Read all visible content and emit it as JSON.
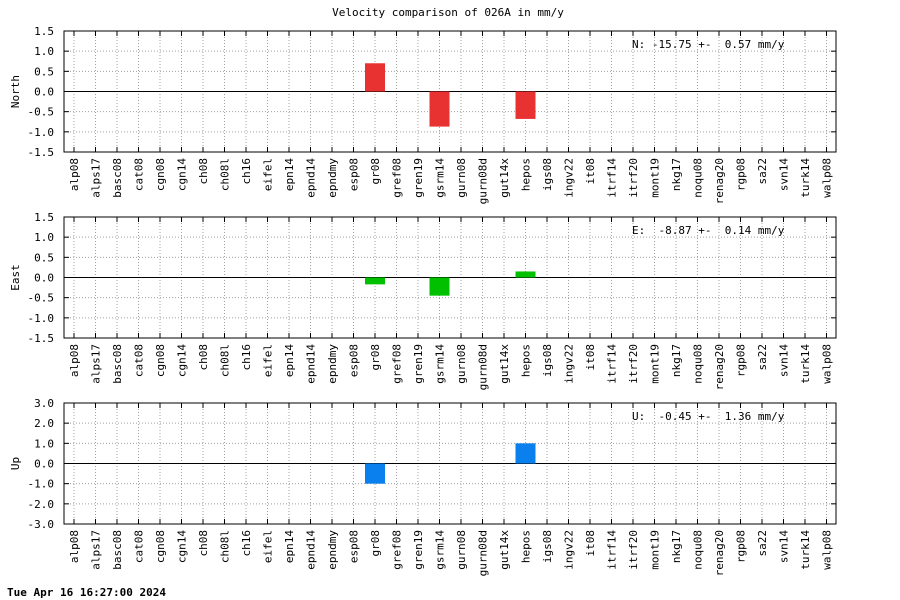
{
  "chart_data": {
    "type": "bar",
    "title": "Velocity comparison of 026A in mm/y",
    "categories": [
      "alp08",
      "alps17",
      "basc08",
      "cat08",
      "cgn08",
      "cgn14",
      "ch08",
      "ch08l",
      "ch16",
      "eifel",
      "epn14",
      "epnd14",
      "epndmy",
      "esp08",
      "gr08",
      "gref08",
      "gren19",
      "gsrm14",
      "gurn08",
      "gurn08d",
      "gut14x",
      "hepos",
      "igs08",
      "ingv22",
      "it08",
      "itrf14",
      "itrf20",
      "mont19",
      "nkg17",
      "noqu08",
      "renag20",
      "rgp08",
      "sa22",
      "svn14",
      "turk14",
      "walp08"
    ],
    "grid": true,
    "panels": [
      {
        "ylabel": "North",
        "color": "#e83232",
        "ylim": [
          -1.5,
          1.5
        ],
        "yticks": [
          "-1.5",
          "-1.0",
          "-0.5",
          "0.0",
          "0.5",
          "1.0",
          "1.5"
        ],
        "annotation": "N: -15.75 +-  0.57 mm/y",
        "values": [
          null,
          null,
          null,
          null,
          null,
          null,
          null,
          null,
          null,
          null,
          null,
          null,
          null,
          null,
          0.7,
          null,
          null,
          -0.87,
          null,
          null,
          null,
          -0.68,
          null,
          null,
          null,
          null,
          null,
          null,
          null,
          null,
          null,
          null,
          null,
          null,
          null,
          null
        ]
      },
      {
        "ylabel": "East",
        "color": "#00c000",
        "ylim": [
          -1.5,
          1.5
        ],
        "yticks": [
          "-1.5",
          "-1.0",
          "-0.5",
          "0.0",
          "0.5",
          "1.0",
          "1.5"
        ],
        "annotation": "E:  -8.87 +-  0.14 mm/y",
        "values": [
          null,
          null,
          null,
          null,
          null,
          null,
          null,
          null,
          null,
          null,
          null,
          null,
          null,
          null,
          -0.17,
          null,
          null,
          -0.45,
          null,
          null,
          null,
          0.15,
          null,
          null,
          null,
          null,
          null,
          null,
          null,
          null,
          null,
          null,
          null,
          null,
          null,
          null
        ]
      },
      {
        "ylabel": "Up",
        "color": "#0a80ee",
        "ylim": [
          -3.0,
          3.0
        ],
        "yticks": [
          "-3.0",
          "-2.0",
          "-1.0",
          "0.0",
          "1.0",
          "2.0",
          "3.0"
        ],
        "annotation": "U:  -0.45 +-  1.36 mm/y",
        "values": [
          null,
          null,
          null,
          null,
          null,
          null,
          null,
          null,
          null,
          null,
          null,
          null,
          null,
          null,
          -1.0,
          null,
          null,
          null,
          null,
          null,
          null,
          1.0,
          null,
          null,
          null,
          null,
          null,
          null,
          null,
          null,
          null,
          null,
          null,
          null,
          null,
          null
        ]
      }
    ]
  },
  "footer": {
    "timestamp": "Tue Apr 16 16:27:00 2024"
  }
}
